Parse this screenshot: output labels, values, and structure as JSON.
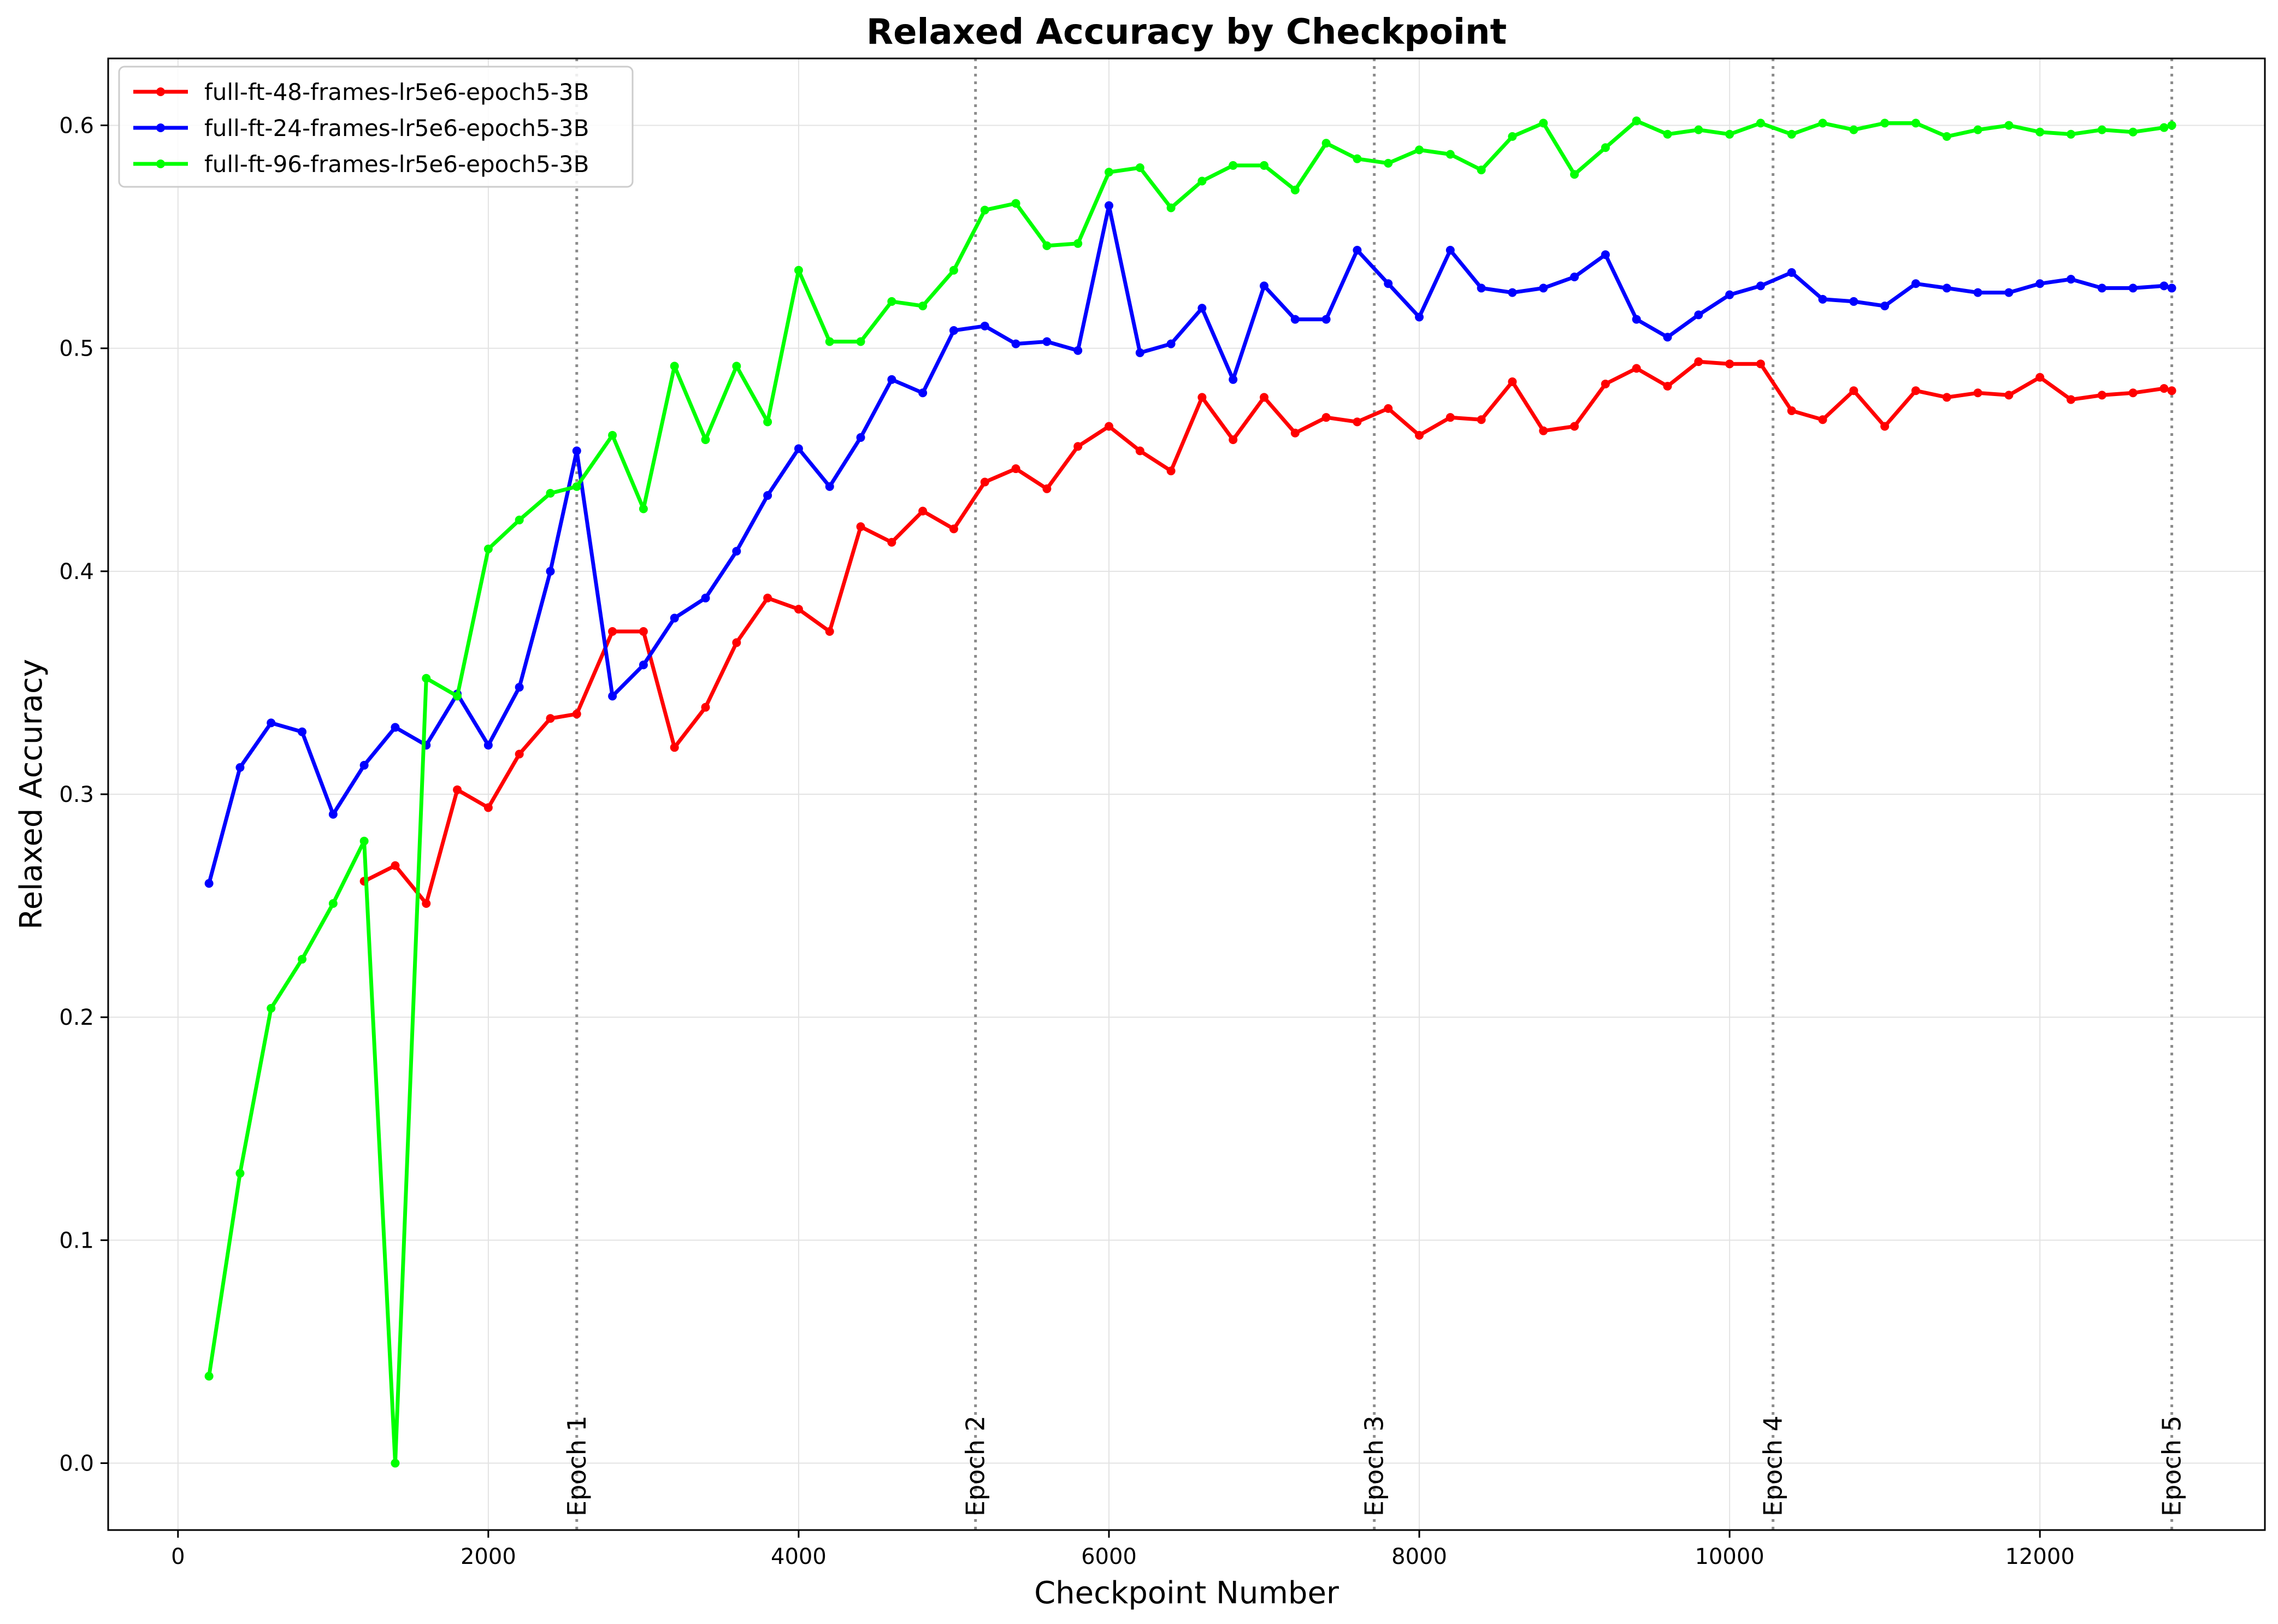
{
  "chart_data": {
    "type": "line",
    "title": "Relaxed Accuracy by Checkpoint",
    "xlabel": "Checkpoint Number",
    "ylabel": "Relaxed Accuracy",
    "xlim": [
      -450,
      13450
    ],
    "ylim": [
      -0.03,
      0.63
    ],
    "xticks": [
      0,
      2000,
      4000,
      6000,
      8000,
      10000,
      12000
    ],
    "xtick_labels": [
      "0",
      "2000",
      "4000",
      "6000",
      "8000",
      "10000",
      "12000"
    ],
    "yticks": [
      0.0,
      0.1,
      0.2,
      0.3,
      0.4,
      0.5,
      0.6
    ],
    "ytick_labels": [
      "0.0",
      "0.1",
      "0.2",
      "0.3",
      "0.4",
      "0.5",
      "0.6"
    ],
    "grid": true,
    "legend_position": "top-left",
    "epoch_markers": [
      {
        "x": 2570,
        "label": "Epoch 1"
      },
      {
        "x": 5140,
        "label": "Epoch 2"
      },
      {
        "x": 7710,
        "label": "Epoch 3"
      },
      {
        "x": 10280,
        "label": "Epoch 4"
      },
      {
        "x": 12850,
        "label": "Epoch 5"
      }
    ],
    "series": [
      {
        "name": "full-ft-48-frames-lr5e6-epoch5-3B",
        "color": "#ff0000",
        "x": [
          1200,
          1400,
          1600,
          1800,
          2000,
          2200,
          2400,
          2570,
          2800,
          3000,
          3200,
          3400,
          3600,
          3800,
          4000,
          4200,
          4400,
          4600,
          4800,
          5000,
          5200,
          5400,
          5600,
          5800,
          6000,
          6200,
          6400,
          6600,
          6800,
          7000,
          7200,
          7400,
          7600,
          7800,
          8000,
          8200,
          8400,
          8600,
          8800,
          9000,
          9200,
          9400,
          9600,
          9800,
          10000,
          10200,
          10400,
          10600,
          10800,
          11000,
          11200,
          11400,
          11600,
          11800,
          12000,
          12200,
          12400,
          12600,
          12800,
          12850
        ],
        "y": [
          0.261,
          0.268,
          0.251,
          0.302,
          0.294,
          0.318,
          0.334,
          0.336,
          0.373,
          0.373,
          0.321,
          0.339,
          0.368,
          0.388,
          0.383,
          0.373,
          0.42,
          0.413,
          0.427,
          0.419,
          0.44,
          0.446,
          0.437,
          0.456,
          0.465,
          0.454,
          0.445,
          0.478,
          0.459,
          0.478,
          0.462,
          0.469,
          0.467,
          0.473,
          0.461,
          0.469,
          0.468,
          0.485,
          0.463,
          0.465,
          0.484,
          0.491,
          0.483,
          0.494,
          0.493,
          0.493,
          0.472,
          0.468,
          0.481,
          0.465,
          0.481,
          0.478,
          0.48,
          0.479,
          0.487,
          0.477,
          0.479,
          0.48,
          0.482,
          0.481
        ]
      },
      {
        "name": "full-ft-24-frames-lr5e6-epoch5-3B",
        "color": "#0000ff",
        "x": [
          200,
          400,
          600,
          800,
          1000,
          1200,
          1400,
          1600,
          1800,
          2000,
          2200,
          2400,
          2570,
          2800,
          3000,
          3200,
          3400,
          3600,
          3800,
          4000,
          4200,
          4400,
          4600,
          4800,
          5000,
          5200,
          5400,
          5600,
          5800,
          6000,
          6200,
          6400,
          6600,
          6800,
          7000,
          7200,
          7400,
          7600,
          7800,
          8000,
          8200,
          8400,
          8600,
          8800,
          9000,
          9200,
          9400,
          9600,
          9800,
          10000,
          10200,
          10400,
          10600,
          10800,
          11000,
          11200,
          11400,
          11600,
          11800,
          12000,
          12200,
          12400,
          12600,
          12800,
          12850
        ],
        "y": [
          0.26,
          0.312,
          0.332,
          0.328,
          0.291,
          0.313,
          0.33,
          0.322,
          0.345,
          0.322,
          0.348,
          0.4,
          0.454,
          0.344,
          0.358,
          0.379,
          0.388,
          0.409,
          0.434,
          0.455,
          0.438,
          0.46,
          0.486,
          0.48,
          0.508,
          0.51,
          0.502,
          0.503,
          0.499,
          0.564,
          0.498,
          0.502,
          0.518,
          0.486,
          0.528,
          0.513,
          0.513,
          0.544,
          0.529,
          0.514,
          0.544,
          0.527,
          0.525,
          0.527,
          0.532,
          0.542,
          0.513,
          0.505,
          0.515,
          0.524,
          0.528,
          0.534,
          0.522,
          0.521,
          0.519,
          0.529,
          0.527,
          0.525,
          0.525,
          0.529,
          0.531,
          0.527,
          0.527,
          0.528,
          0.527
        ]
      },
      {
        "name": "full-ft-96-frames-lr5e6-epoch5-3B",
        "color": "#00ff00",
        "x": [
          200,
          400,
          600,
          800,
          1000,
          1200,
          1400,
          1600,
          1800,
          2000,
          2200,
          2400,
          2570,
          2800,
          3000,
          3200,
          3400,
          3600,
          3800,
          4000,
          4200,
          4400,
          4600,
          4800,
          5000,
          5200,
          5400,
          5600,
          5800,
          6000,
          6200,
          6400,
          6600,
          6800,
          7000,
          7200,
          7400,
          7600,
          7800,
          8000,
          8200,
          8400,
          8600,
          8800,
          9000,
          9200,
          9400,
          9600,
          9800,
          10000,
          10200,
          10400,
          10600,
          10800,
          11000,
          11200,
          11400,
          11600,
          11800,
          12000,
          12200,
          12400,
          12600,
          12800,
          12850
        ],
        "y": [
          0.039,
          0.13,
          0.204,
          0.226,
          0.251,
          0.279,
          0.0,
          0.352,
          0.344,
          0.41,
          0.423,
          0.435,
          0.438,
          0.461,
          0.428,
          0.492,
          0.459,
          0.492,
          0.467,
          0.535,
          0.503,
          0.503,
          0.521,
          0.519,
          0.535,
          0.562,
          0.565,
          0.546,
          0.547,
          0.579,
          0.581,
          0.563,
          0.575,
          0.582,
          0.582,
          0.571,
          0.592,
          0.585,
          0.583,
          0.589,
          0.587,
          0.58,
          0.595,
          0.601,
          0.578,
          0.59,
          0.602,
          0.596,
          0.598,
          0.596,
          0.601,
          0.596,
          0.601,
          0.598,
          0.601,
          0.601,
          0.595,
          0.598,
          0.6,
          0.597,
          0.596,
          0.598,
          0.597,
          0.599,
          0.6
        ]
      }
    ]
  }
}
